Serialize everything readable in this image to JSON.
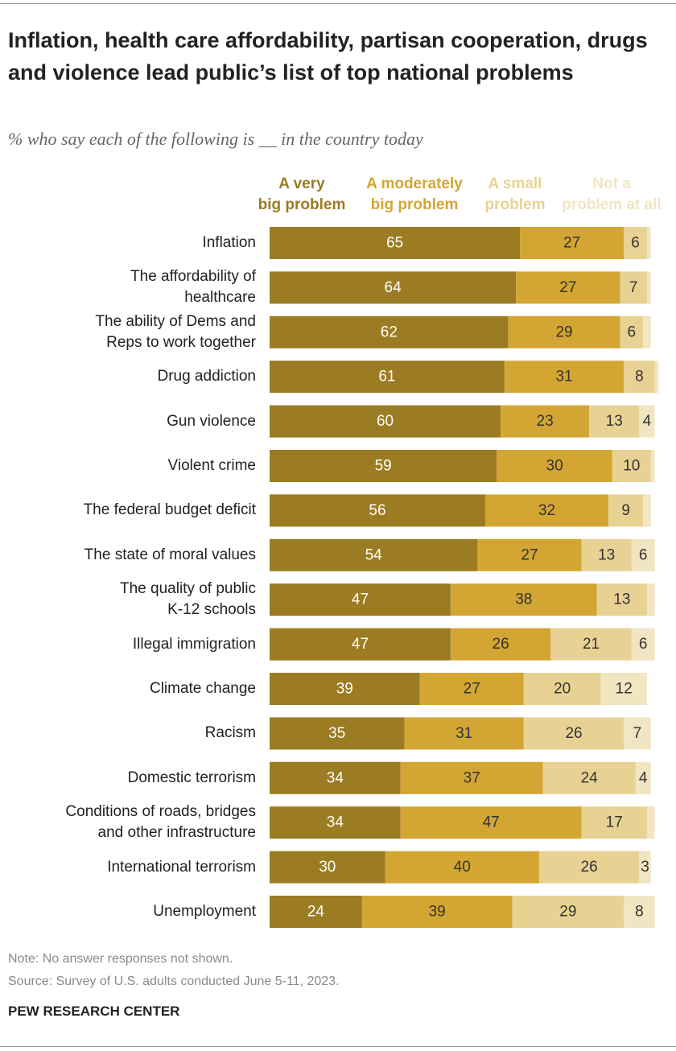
{
  "chart_data": {
    "type": "stacked-bar-horizontal",
    "title": "Inflation, health care affordability, partisan cooperation, drugs and violence lead public’s list of top national problems",
    "subtitle": "% who say each of the following is __ in the country today",
    "categories": [
      "Inflation",
      "The affordability of\nhealthcare",
      "The ability of Dems and\nReps to work together",
      "Drug addiction",
      "Gun violence",
      "Violent crime",
      "The federal budget deficit",
      "The state of moral values",
      "The quality of public\nK-12 schools",
      "Illegal immigration",
      "Climate change",
      "Racism",
      "Domestic terrorism",
      "Conditions of roads, bridges\nand other infrastructure",
      "International terrorism",
      "Unemployment"
    ],
    "xlim": [
      0,
      100
    ],
    "series": [
      {
        "name": "A very\nbig problem",
        "color": "#9b7c22",
        "label_color": "#ffffff",
        "values": [
          65,
          64,
          62,
          61,
          60,
          59,
          56,
          54,
          47,
          47,
          39,
          35,
          34,
          34,
          30,
          24
        ]
      },
      {
        "name": "A moderately\nbig problem",
        "color": "#d3a633",
        "label_color": "#333333",
        "values": [
          27,
          27,
          29,
          31,
          23,
          30,
          32,
          27,
          38,
          26,
          27,
          31,
          37,
          47,
          40,
          39
        ]
      },
      {
        "name": "A small\nproblem",
        "color": "#e8d293",
        "label_color": "#333333",
        "values": [
          6,
          7,
          6,
          8,
          13,
          10,
          9,
          13,
          13,
          21,
          20,
          26,
          24,
          17,
          26,
          29
        ]
      },
      {
        "name": "Not a\nproblem at all",
        "color": "#f1e5c2",
        "label_color": "#333333",
        "values": [
          1,
          1,
          2,
          1,
          4,
          1,
          2,
          6,
          2,
          6,
          12,
          7,
          4,
          2,
          3,
          8
        ],
        "value_labels": [
          null,
          null,
          null,
          null,
          "4",
          null,
          null,
          "6",
          null,
          "6",
          "12",
          "7",
          "4",
          null,
          "3",
          "8"
        ]
      }
    ],
    "note": "Note: No answer responses not shown.",
    "source": "Source: Survey of U.S. adults conducted June 5-11, 2023.",
    "credit": "PEW RESEARCH CENTER"
  }
}
